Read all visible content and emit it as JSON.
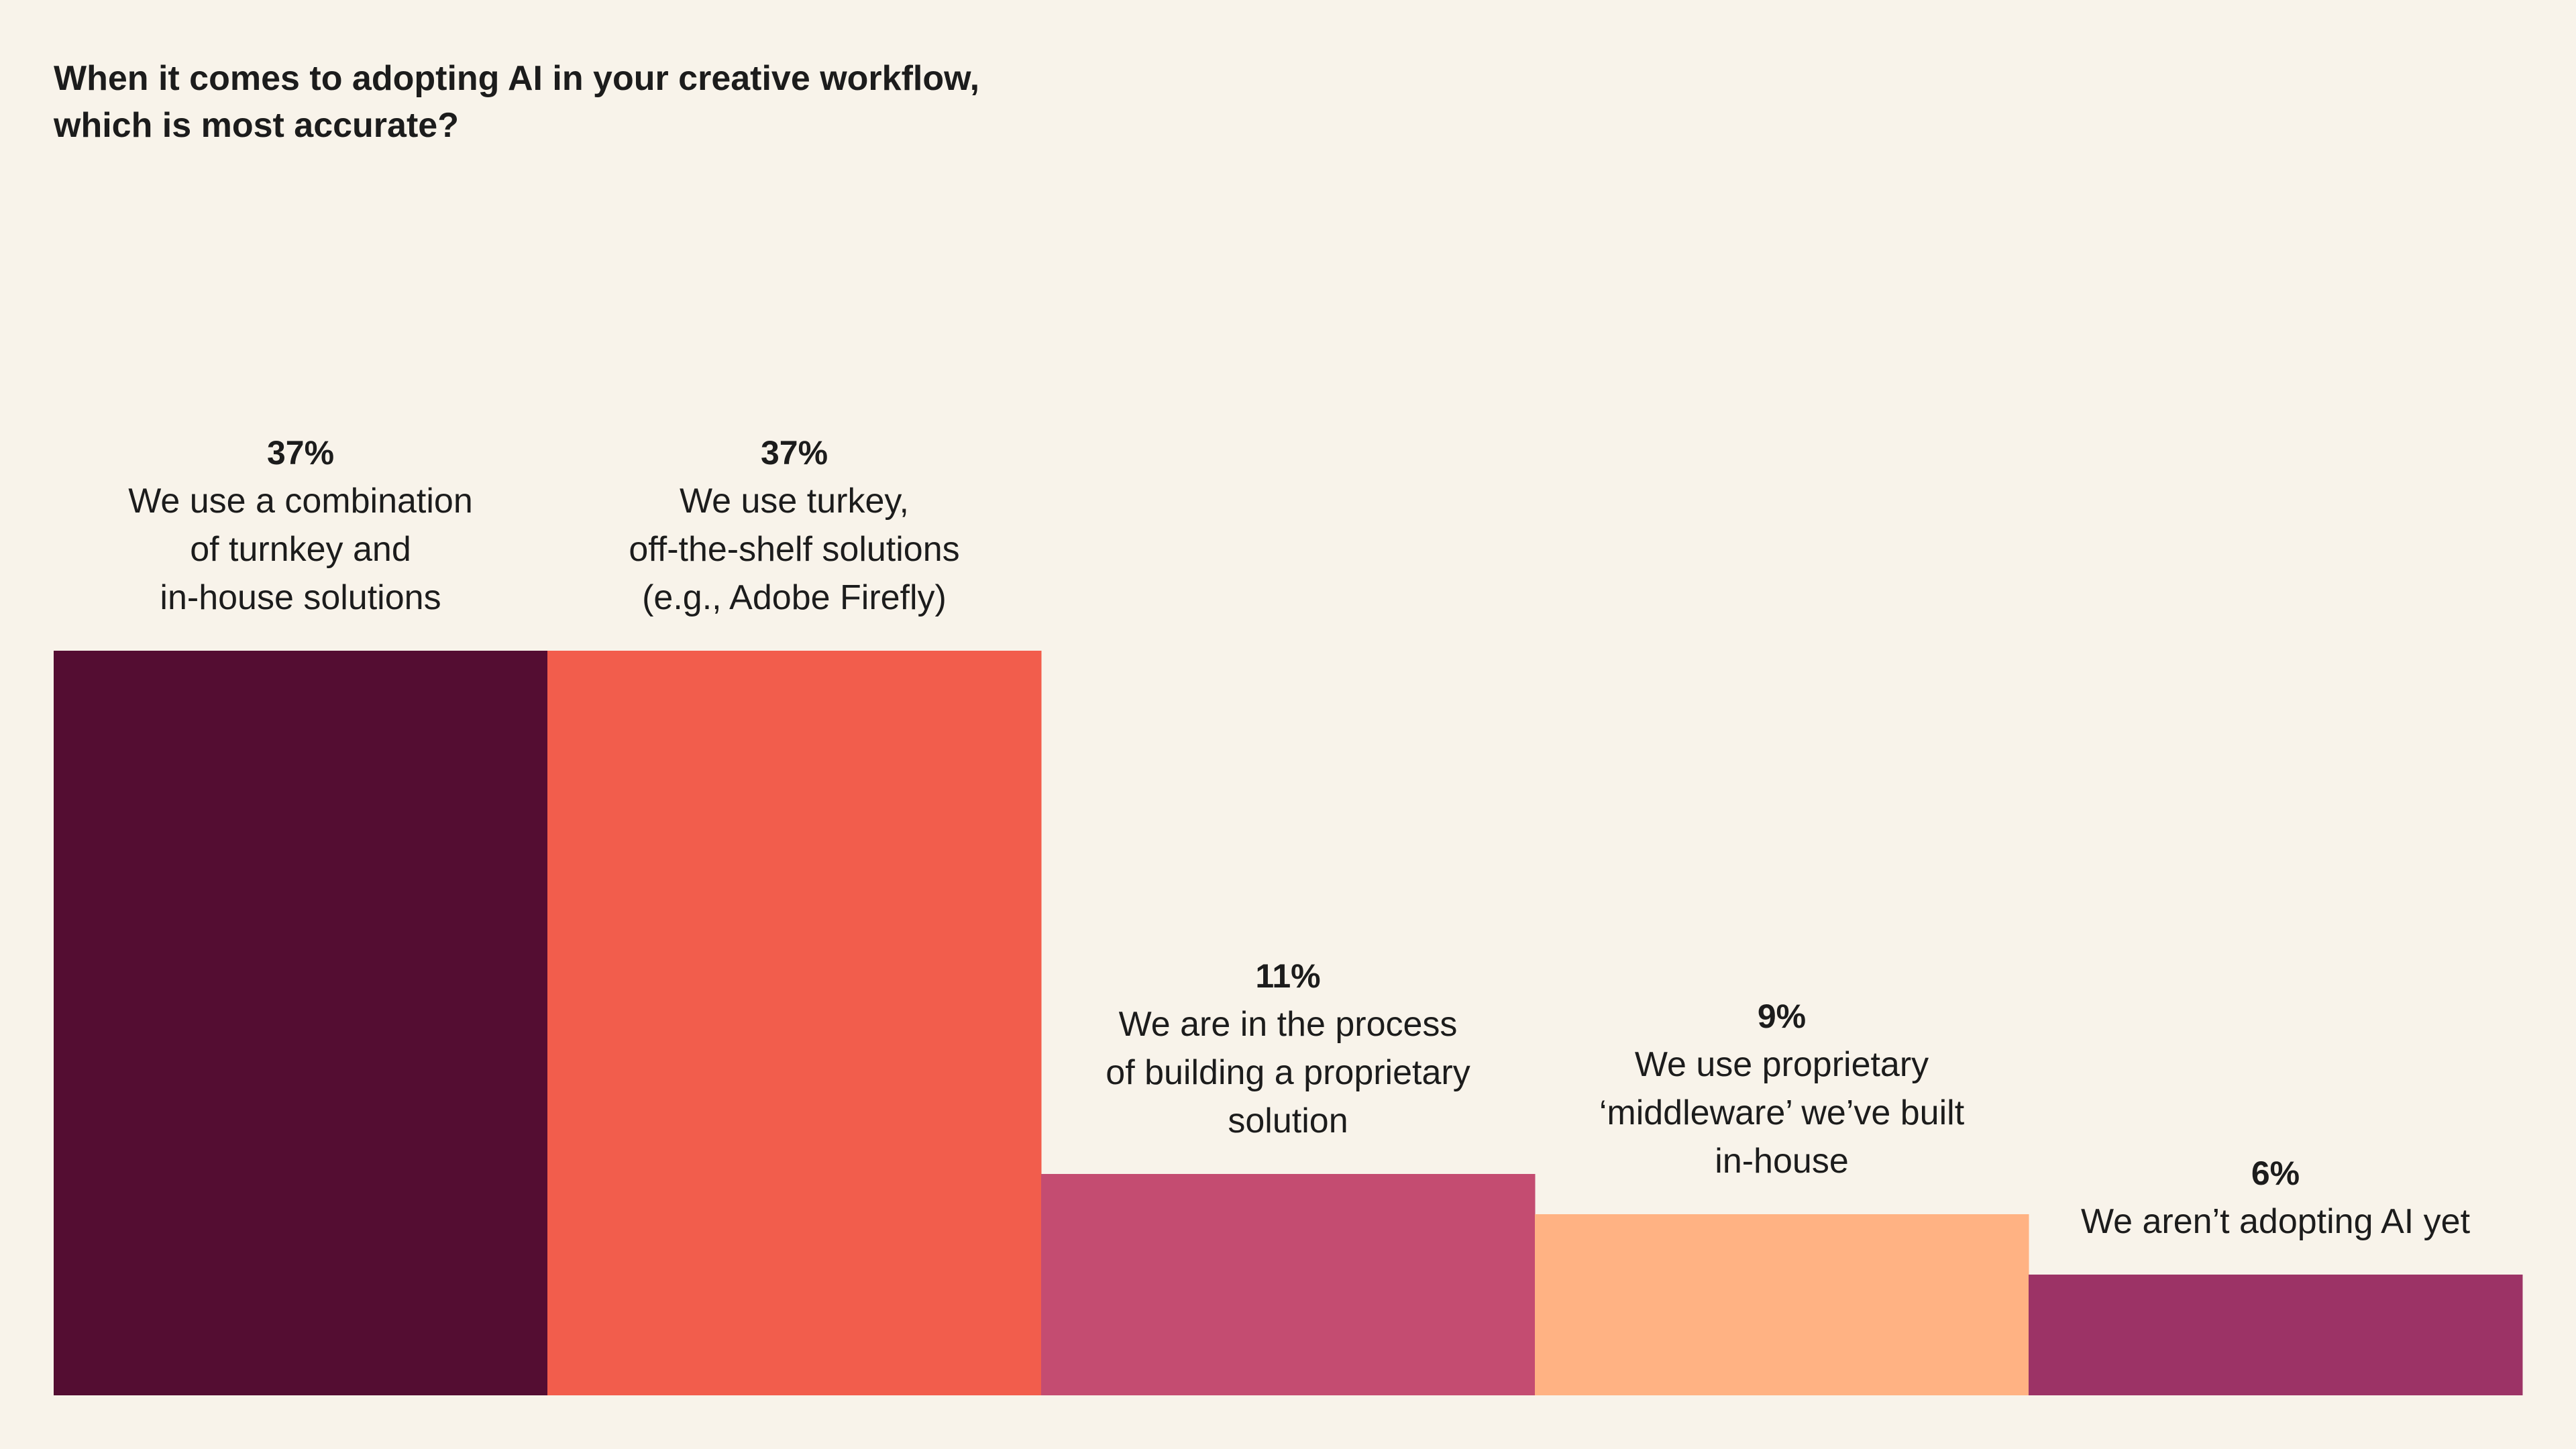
{
  "chart_data": {
    "type": "bar",
    "title_lines": [
      "When it comes to adopting AI in your creative workflow,",
      "which is most accurate?"
    ],
    "xlabel": "",
    "ylabel": "",
    "ylim": [
      0,
      37
    ],
    "grid": false,
    "legend": "none",
    "bars": [
      {
        "value": 37,
        "value_label": "37%",
        "label_lines": [
          "We use a combination",
          "of turnkey and",
          "in-house solutions"
        ],
        "color": "#540d32"
      },
      {
        "value": 37,
        "value_label": "37%",
        "label_lines": [
          "We use turkey,",
          "off-the-shelf solutions",
          "(e.g., Adobe Firefly)"
        ],
        "color": "#f25d4c"
      },
      {
        "value": 11,
        "value_label": "11%",
        "label_lines": [
          "We are in the process",
          "of building a proprietary",
          "solution"
        ],
        "color": "#c44c71"
      },
      {
        "value": 9,
        "value_label": "9%",
        "label_lines": [
          "We use proprietary",
          "‘middleware’ we’ve built",
          "in-house"
        ],
        "color": "#ffb283"
      },
      {
        "value": 6,
        "value_label": "6%",
        "label_lines": [
          "We aren’t adopting AI yet"
        ],
        "color": "#9c3366"
      }
    ]
  }
}
